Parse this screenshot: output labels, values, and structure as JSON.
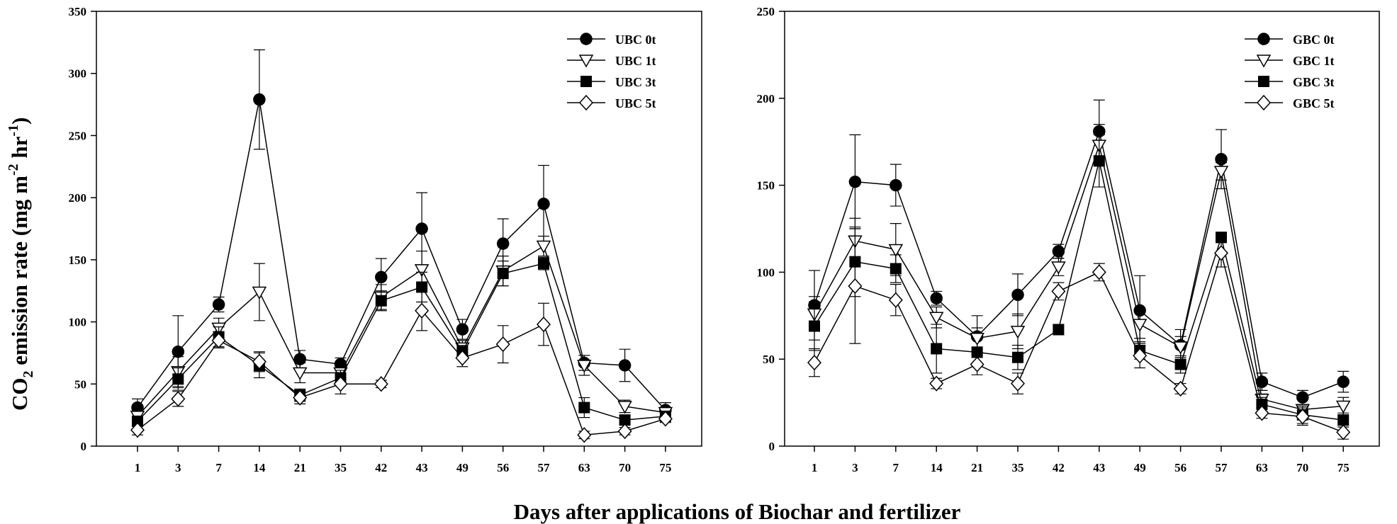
{
  "chart_data": [
    {
      "type": "line",
      "panel": "left",
      "categories": [
        "1",
        "3",
        "7",
        "14",
        "21",
        "35",
        "42",
        "43",
        "49",
        "56",
        "57",
        "63",
        "70",
        "75"
      ],
      "ylim": [
        0,
        350
      ],
      "yticks": [
        0,
        50,
        100,
        150,
        200,
        250,
        300,
        350
      ],
      "series": [
        {
          "name": "UBC 0t",
          "marker": "circle-filled",
          "values": [
            31,
            76,
            114,
            279,
            70,
            66,
            136,
            175,
            94,
            163,
            195,
            67,
            65,
            29
          ],
          "errors": [
            7,
            29,
            6,
            40,
            7,
            5,
            15,
            29,
            8,
            20,
            31,
            6,
            13,
            6
          ]
        },
        {
          "name": "UBC 1t",
          "marker": "triangle-down-open",
          "values": [
            24,
            60,
            95,
            124,
            59,
            59,
            120,
            142,
            79,
            141,
            161,
            65,
            32,
            27
          ],
          "errors": [
            5,
            12,
            8,
            23,
            8,
            5,
            10,
            15,
            6,
            12,
            8,
            8,
            5,
            4
          ]
        },
        {
          "name": "UBC 3t",
          "marker": "square-filled",
          "values": [
            20,
            54,
            88,
            65,
            41,
            55,
            117,
            128,
            76,
            139,
            147,
            31,
            21,
            24
          ],
          "errors": [
            4,
            9,
            8,
            10,
            5,
            6,
            8,
            12,
            5,
            10,
            5,
            8,
            4,
            3
          ]
        },
        {
          "name": "UBC 5t",
          "marker": "diamond-open",
          "values": [
            13,
            38,
            85,
            68,
            39,
            50,
            50,
            109,
            71,
            82,
            98,
            9,
            12,
            22
          ],
          "errors": [
            4,
            6,
            6,
            8,
            5,
            8,
            3,
            16,
            7,
            15,
            17,
            3,
            3,
            3
          ]
        }
      ]
    },
    {
      "type": "line",
      "panel": "right",
      "categories": [
        "1",
        "3",
        "7",
        "14",
        "21",
        "35",
        "42",
        "43",
        "49",
        "56",
        "57",
        "63",
        "70",
        "75"
      ],
      "ylim": [
        0,
        250
      ],
      "yticks": [
        0,
        50,
        100,
        150,
        200,
        250
      ],
      "series": [
        {
          "name": "GBC 0t",
          "marker": "circle-filled",
          "values": [
            81,
            152,
            150,
            85,
            63,
            87,
            112,
            181,
            78,
            58,
            165,
            37,
            28,
            37
          ],
          "errors": [
            20,
            27,
            12,
            4,
            12,
            12,
            4,
            18,
            20,
            9,
            17,
            5,
            4,
            6
          ]
        },
        {
          "name": "GBC 1t",
          "marker": "triangle-down-open",
          "values": [
            76,
            118,
            113,
            74,
            62,
            66,
            103,
            173,
            70,
            57,
            158,
            27,
            21,
            23
          ],
          "errors": [
            10,
            13,
            15,
            6,
            6,
            10,
            5,
            12,
            8,
            6,
            5,
            3,
            3,
            5
          ]
        },
        {
          "name": "GBC 3t",
          "marker": "square-filled",
          "values": [
            69,
            106,
            102,
            56,
            54,
            51,
            67,
            164,
            55,
            47,
            120,
            24,
            18,
            15
          ],
          "errors": [
            14,
            20,
            8,
            14,
            3,
            7,
            3,
            15,
            5,
            5,
            3,
            4,
            5,
            4
          ]
        },
        {
          "name": "GBC 5t",
          "marker": "diamond-open",
          "values": [
            48,
            92,
            84,
            36,
            47,
            36,
            89,
            100,
            52,
            33,
            111,
            19,
            17,
            8
          ],
          "errors": [
            8,
            33,
            9,
            3,
            6,
            6,
            5,
            5,
            7,
            3,
            8,
            3,
            5,
            4
          ]
        }
      ]
    }
  ],
  "ylabel_parts": {
    "main": "CO",
    "sub": "2",
    "rest": " emission rate (mg m",
    "exp1": "-2",
    "mid": " hr",
    "exp2": "-1",
    "close": ")"
  },
  "xlabel": "Days after applications of Biochar and fertilizer"
}
